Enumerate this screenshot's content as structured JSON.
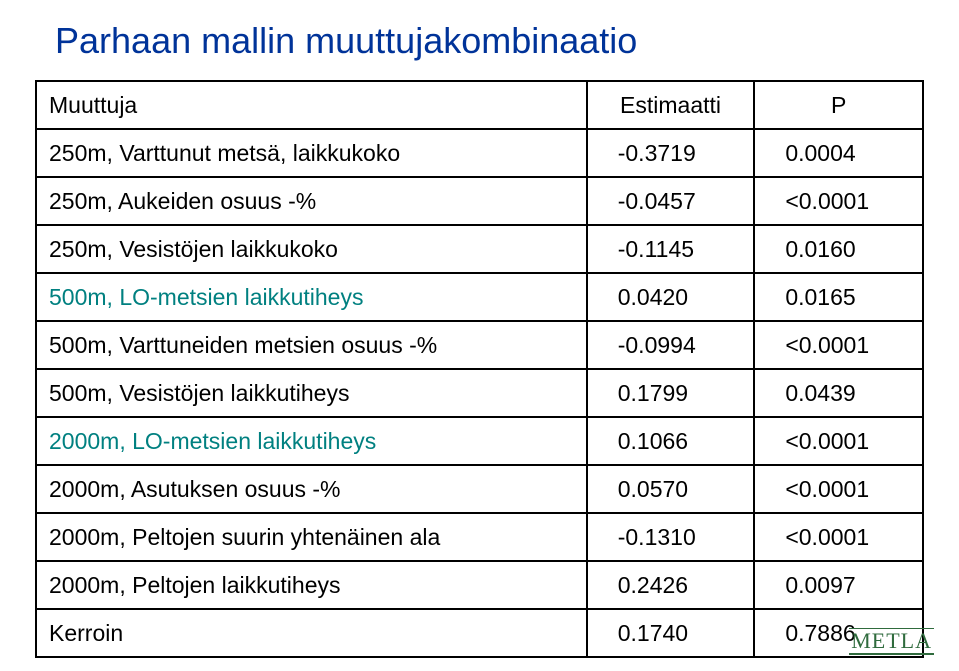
{
  "title": "Parhaan mallin muuttujakombinaatio",
  "headers": {
    "var": "Muuttuja",
    "est": "Estimaatti",
    "p": "P"
  },
  "rows": [
    {
      "label": "250m, Varttunut metsä, laikkukoko",
      "est": "-0.3719",
      "p": "0.0004",
      "color": "#000000"
    },
    {
      "label": "250m, Aukeiden osuus -%",
      "est": "-0.0457",
      "p": "<0.0001",
      "color": "#000000"
    },
    {
      "label": "250m, Vesistöjen laikkukoko",
      "est": "-0.1145",
      "p": "0.0160",
      "color": "#000000"
    },
    {
      "label": "500m, LO-metsien laikkutiheys",
      "est": "0.0420",
      "p": "0.0165",
      "color": "#008080"
    },
    {
      "label": "500m, Varttuneiden metsien osuus -%",
      "est": "-0.0994",
      "p": "<0.0001",
      "color": "#000000"
    },
    {
      "label": "500m, Vesistöjen  laikkutiheys",
      "est": "0.1799",
      "p": "0.0439",
      "color": "#000000"
    },
    {
      "label": "2000m, LO-metsien laikkutiheys",
      "est": "0.1066",
      "p": "<0.0001",
      "color": "#008080"
    },
    {
      "label": "2000m, Asutuksen osuus -%",
      "est": "0.0570",
      "p": "<0.0001",
      "color": "#000000"
    },
    {
      "label": "2000m, Peltojen suurin yhtenäinen ala",
      "est": "-0.1310",
      "p": "<0.0001",
      "color": "#000000"
    },
    {
      "label": "2000m, Peltojen laikkutiheys",
      "est": "0.2426",
      "p": "0.0097",
      "color": "#000000"
    },
    {
      "label": "Kerroin",
      "est": "0.1740",
      "p": "0.7886",
      "color": "#000000"
    }
  ],
  "logo": "METLA"
}
